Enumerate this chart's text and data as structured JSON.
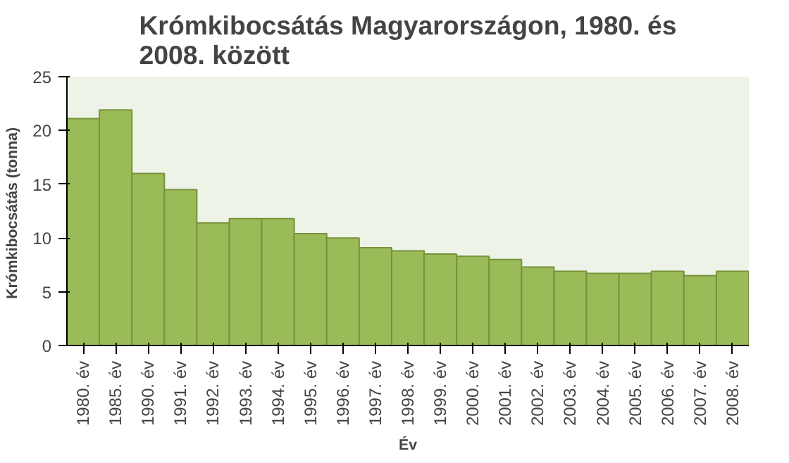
{
  "chart_data": {
    "type": "bar",
    "title": "Krómkibocsátás Magyarországon, 1980. és\n2008. között",
    "xlabel": "Év",
    "ylabel": "Krómkibocsátás  (tonna)",
    "categories": [
      "1980. év",
      "1985. év",
      "1990. év",
      "1991. év",
      "1992. év",
      "1993. év",
      "1994. év",
      "1995. év",
      "1996. év",
      "1997. év",
      "1998. év",
      "1999. év",
      "2000. év",
      "2001. év",
      "2002. év",
      "2003. év",
      "2004. év",
      "2005. év",
      "2006. év",
      "2007. év",
      "2008. év"
    ],
    "values": [
      21.1,
      21.9,
      16.0,
      14.5,
      11.4,
      11.8,
      11.8,
      10.4,
      10.0,
      9.1,
      8.8,
      8.5,
      8.3,
      8.0,
      7.3,
      6.9,
      6.7,
      6.7,
      6.9,
      6.5,
      6.9
    ],
    "color": "#9bbb59",
    "ylim": [
      0,
      25
    ],
    "yticks": [
      0,
      5,
      10,
      15,
      20,
      25
    ],
    "grid": false
  }
}
